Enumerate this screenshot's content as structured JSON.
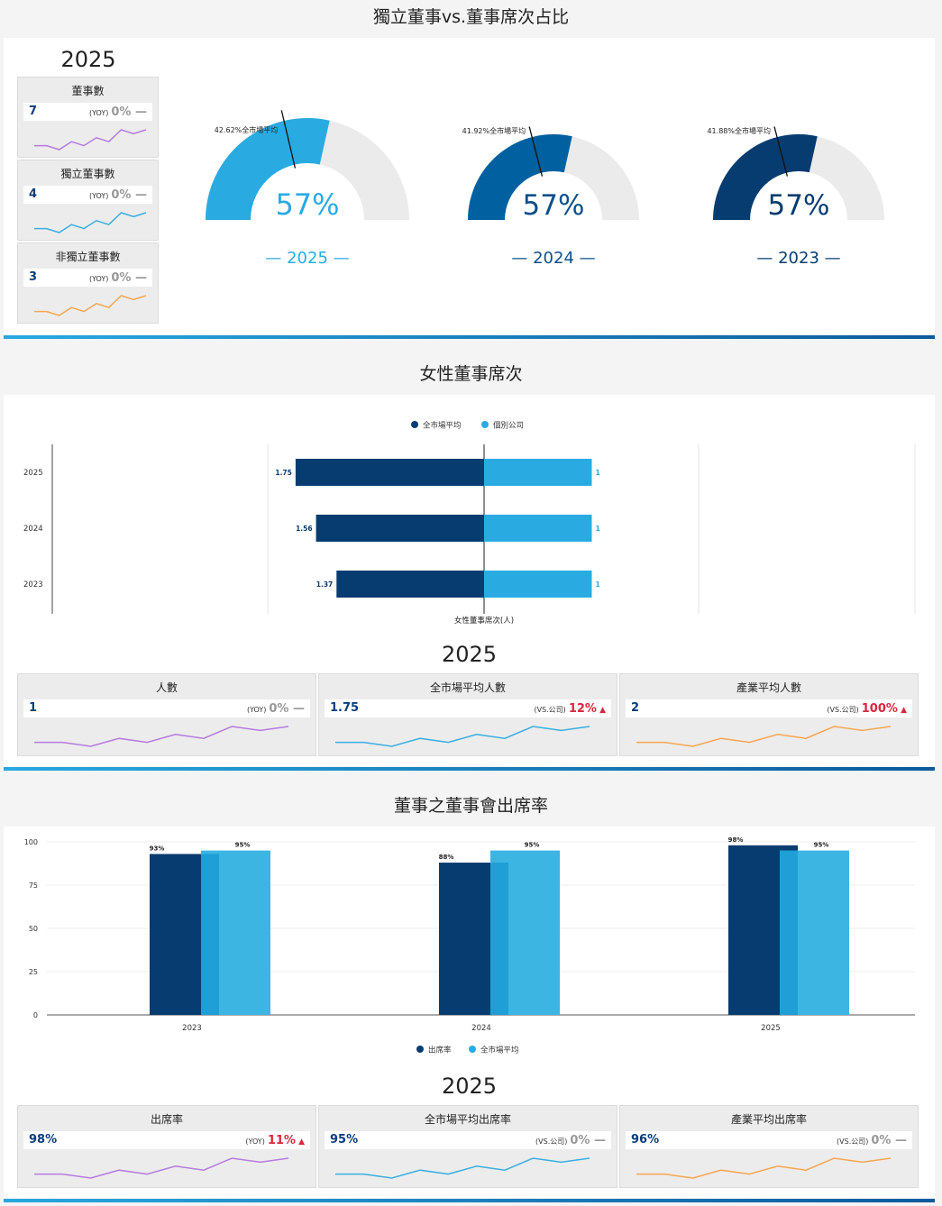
{
  "section1": {
    "title": "獨立董事vs.董事席次占比",
    "year": "2025",
    "kpis": [
      {
        "label": "董事數",
        "value": "7",
        "tag": "(YOY)",
        "change": "0%",
        "indicator": "—",
        "trend": "flat",
        "color": "#b57bdf",
        "spark": [
          4,
          4,
          3,
          5,
          4,
          6,
          5,
          8,
          7,
          8
        ]
      },
      {
        "label": "獨立董事數",
        "value": "4",
        "tag": "(YOY)",
        "change": "0%",
        "indicator": "—",
        "trend": "flat",
        "color": "#3aaee0",
        "spark": [
          4,
          4,
          3,
          5,
          4,
          6,
          5,
          8,
          7,
          8
        ]
      },
      {
        "label": "非獨立董事數",
        "value": "3",
        "tag": "(YOY)",
        "change": "0%",
        "indicator": "—",
        "trend": "flat",
        "color": "#f7a652",
        "spark": [
          4,
          4,
          3,
          5,
          4,
          6,
          5,
          8,
          7,
          8
        ]
      }
    ],
    "gauges": [
      {
        "year": "— 2025 —",
        "value_label": "57%",
        "value": 57,
        "market_avg": 42.62,
        "market_label": "42.62%全市場平均",
        "color": "#29abe2",
        "text_color": "#29abe2"
      },
      {
        "year": "— 2024 —",
        "value_label": "57%",
        "value": 57,
        "market_avg": 41.92,
        "market_label": "41.92%全市場平均",
        "color": "#0060a0",
        "text_color": "#0b4f8a"
      },
      {
        "year": "— 2023 —",
        "value_label": "57%",
        "value": 57,
        "market_avg": 41.88,
        "market_label": "41.88%全市場平均",
        "color": "#073c70",
        "text_color": "#073c70"
      }
    ]
  },
  "section2": {
    "title": "女性董事席次",
    "legend": [
      {
        "label": "全市場平均",
        "color": "#073c70"
      },
      {
        "label": "個別公司",
        "color": "#29abe2"
      }
    ],
    "axis_label": "女性董事席次(人)",
    "year": "2025",
    "kpis": [
      {
        "label": "人數",
        "value": "1",
        "tag": "(YOY)",
        "change": "0%",
        "indicator": "—",
        "trend": "flat",
        "color": "#b57bdf",
        "spark": [
          4,
          4,
          3,
          5,
          4,
          6,
          5,
          8,
          7,
          8
        ]
      },
      {
        "label": "全市場平均人數",
        "value": "1.75",
        "tag": "(VS.公司)",
        "change": "12%",
        "indicator": "▲",
        "trend": "up",
        "color": "#3aaee0",
        "spark": [
          4,
          4,
          3,
          5,
          4,
          6,
          5,
          8,
          7,
          8
        ]
      },
      {
        "label": "產業平均人數",
        "value": "2",
        "tag": "(VS.公司)",
        "change": "100%",
        "indicator": "▲",
        "trend": "up",
        "color": "#f7a652",
        "spark": [
          4,
          4,
          3,
          5,
          4,
          6,
          5,
          8,
          7,
          8
        ]
      }
    ]
  },
  "section3": {
    "title": "董事之董事會出席率",
    "legend": [
      {
        "label": "出席率",
        "color": "#073c70"
      },
      {
        "label": "全市場平均",
        "color": "#29abe2"
      }
    ],
    "year": "2025",
    "kpis": [
      {
        "label": "出席率",
        "value": "98%",
        "tag": "(YOY)",
        "change": "11%",
        "indicator": "▲",
        "trend": "up",
        "color": "#b57bdf",
        "spark": [
          4,
          4,
          3,
          5,
          4,
          6,
          5,
          8,
          7,
          8
        ]
      },
      {
        "label": "全市場平均出席率",
        "value": "95%",
        "tag": "(VS.公司)",
        "change": "0%",
        "indicator": "—",
        "trend": "flat",
        "color": "#3aaee0",
        "spark": [
          4,
          4,
          3,
          5,
          4,
          6,
          5,
          8,
          7,
          8
        ]
      },
      {
        "label": "產業平均出席率",
        "value": "96%",
        "tag": "(VS.公司)",
        "change": "0%",
        "indicator": "—",
        "trend": "flat",
        "color": "#f7a652",
        "spark": [
          4,
          4,
          3,
          5,
          4,
          6,
          5,
          8,
          7,
          8
        ]
      }
    ]
  },
  "chart_data": [
    {
      "type": "gauge",
      "title": "獨立董事vs.董事席次占比",
      "series": [
        {
          "name": "2025",
          "value": 57,
          "market_avg": 42.62
        },
        {
          "name": "2024",
          "value": 57,
          "market_avg": 41.92
        },
        {
          "name": "2023",
          "value": 57,
          "market_avg": 41.88
        }
      ]
    },
    {
      "type": "bar",
      "orientation": "horizontal-diverging",
      "title": "女性董事席次",
      "xlabel": "女性董事席次(人)",
      "categories": [
        "2025",
        "2024",
        "2023"
      ],
      "series": [
        {
          "name": "全市場平均",
          "values": [
            1.75,
            1.56,
            1.37
          ],
          "labels": [
            "1.75",
            "1.56",
            "1.37"
          ]
        },
        {
          "name": "個別公司",
          "values": [
            1,
            1,
            1
          ],
          "labels": [
            "1",
            "1",
            "1"
          ]
        }
      ],
      "legend": "top-center"
    },
    {
      "type": "bar",
      "title": "董事之董事會出席率",
      "categories": [
        "2023",
        "2024",
        "2025"
      ],
      "series": [
        {
          "name": "出席率",
          "values": [
            93,
            88,
            98
          ],
          "labels": [
            "93%",
            "88%",
            "98%"
          ]
        },
        {
          "name": "全市場平均",
          "values": [
            95,
            95,
            95
          ],
          "labels": [
            "95%",
            "95%",
            "95%"
          ]
        }
      ],
      "ylim": [
        0,
        100
      ],
      "yticks": [
        "100",
        "75",
        "50",
        "25",
        "0"
      ],
      "ytick_values": [
        100,
        75,
        50,
        25,
        0
      ],
      "grid": true,
      "legend": "bottom-center"
    }
  ]
}
